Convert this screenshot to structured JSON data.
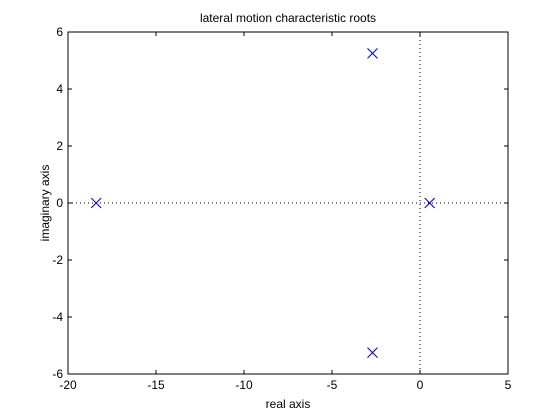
{
  "chart_data": {
    "type": "scatter",
    "title": "lateral motion characteristic roots",
    "xlabel": "real axis",
    "ylabel": "imaginary axis",
    "xlim": [
      -20,
      5
    ],
    "ylim": [
      -6,
      6
    ],
    "xticks": [
      -20,
      -15,
      -10,
      -5,
      0,
      5
    ],
    "yticks": [
      -6,
      -4,
      -2,
      0,
      2,
      4,
      6
    ],
    "grid": false,
    "marker": "x",
    "marker_color": "#0000cc",
    "reference_lines": [
      "x = 0 (dotted)",
      "y = 0 (dotted)"
    ],
    "points": [
      {
        "x": -18.4,
        "y": 0
      },
      {
        "x": -2.7,
        "y": 5.25
      },
      {
        "x": -2.7,
        "y": -5.25
      },
      {
        "x": 0.55,
        "y": 0
      }
    ]
  }
}
